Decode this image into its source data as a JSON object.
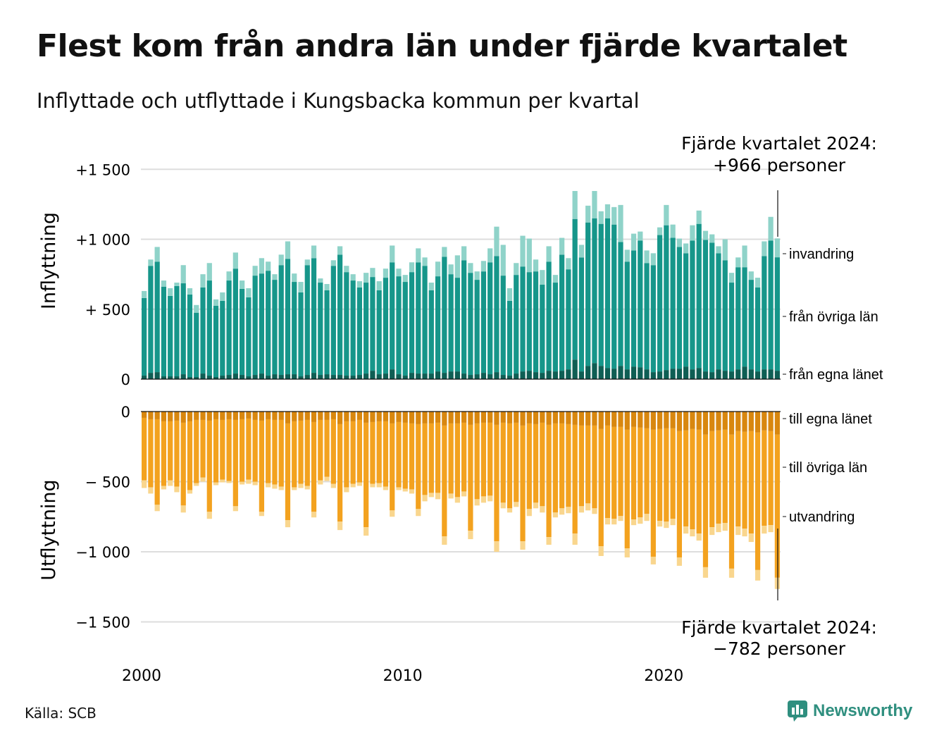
{
  "title": "Flest kom från andra län under fjärde kvartalet",
  "subtitle": "Inflyttade och utflyttade i Kungsbacka kommun per kvartal",
  "source": "Källa: SCB",
  "brand": "Newsworthy",
  "colors": {
    "in_egna": "#0e5e54",
    "in_ovriga": "#16968a",
    "in_invandring": "#8fd3c9",
    "out_egna": "#d8870f",
    "out_ovriga": "#f3a21f",
    "out_utvandring": "#f9d68e",
    "brand": "#2f8f7f"
  },
  "annotations": {
    "top_line1": "Fjärde kvartalet 2024:",
    "top_line2": "+966 personer",
    "bottom_line1": "Fjärde kvartalet 2024:",
    "bottom_line2": "−782 personer"
  },
  "chart_data": {
    "type": "bar",
    "stacked": true,
    "x_start_quarter": "2000 Q1",
    "x_ticks": [
      "2000",
      "2010",
      "2020"
    ],
    "panels": {
      "top": {
        "ylabel": "Inflyttning",
        "yticks": [
          "0",
          "+ 500",
          "+1 000",
          "+1 500"
        ],
        "ylim": [
          0,
          1500
        ],
        "series_labels": [
          "invandring",
          "från övriga län",
          "från egna länet"
        ]
      },
      "bottom": {
        "ylabel": "Utflyttning",
        "yticks": [
          "0",
          "− 500",
          "−1 000",
          "−1 500"
        ],
        "ylim": [
          -1500,
          0
        ],
        "series_labels": [
          "till egna länet",
          "till övriga län",
          "utvandring"
        ]
      }
    },
    "inflyttning_total": [
      630,
      855,
      945,
      705,
      650,
      690,
      815,
      650,
      530,
      750,
      830,
      570,
      620,
      770,
      905,
      705,
      650,
      810,
      865,
      840,
      750,
      890,
      985,
      755,
      695,
      855,
      955,
      720,
      680,
      850,
      950,
      810,
      750,
      700,
      760,
      795,
      700,
      790,
      955,
      790,
      745,
      835,
      935,
      870,
      690,
      840,
      945,
      820,
      885,
      950,
      830,
      770,
      845,
      935,
      1090,
      960,
      650,
      830,
      1025,
      1005,
      855,
      780,
      950,
      745,
      1010,
      865,
      1345,
      960,
      1240,
      1345,
      1200,
      1250,
      1230,
      1245,
      925,
      1040,
      1055,
      920,
      900,
      1085,
      1245,
      1105,
      1005,
      970,
      1100,
      1205,
      1060,
      1035,
      950,
      1000,
      760,
      870,
      955,
      770,
      725,
      985,
      1160,
      1006
    ],
    "inflyttning_egna": [
      25,
      45,
      50,
      20,
      20,
      20,
      35,
      15,
      15,
      40,
      25,
      15,
      25,
      30,
      40,
      30,
      20,
      30,
      40,
      25,
      35,
      30,
      35,
      35,
      20,
      30,
      45,
      30,
      35,
      30,
      30,
      25,
      25,
      30,
      40,
      60,
      35,
      40,
      70,
      35,
      25,
      45,
      40,
      40,
      40,
      55,
      45,
      55,
      55,
      40,
      30,
      35,
      45,
      35,
      50,
      30,
      25,
      40,
      55,
      60,
      50,
      45,
      60,
      55,
      60,
      70,
      140,
      55,
      95,
      115,
      95,
      80,
      75,
      95,
      70,
      90,
      85,
      70,
      50,
      55,
      65,
      75,
      75,
      90,
      70,
      80,
      55,
      50,
      70,
      60,
      55,
      70,
      90,
      70,
      55,
      70,
      70,
      60
    ],
    "inflyttning_invandring": [
      50,
      45,
      105,
      45,
      55,
      25,
      130,
      45,
      55,
      95,
      125,
      45,
      60,
      65,
      115,
      60,
      65,
      70,
      110,
      65,
      40,
      75,
      125,
      60,
      75,
      40,
      90,
      30,
      45,
      40,
      60,
      45,
      45,
      45,
      70,
      65,
      65,
      65,
      120,
      55,
      50,
      70,
      100,
      60,
      55,
      105,
      70,
      70,
      160,
      100,
      70,
      60,
      75,
      100,
      210,
      220,
      90,
      85,
      220,
      240,
      85,
      105,
      110,
      55,
      120,
      80,
      200,
      90,
      120,
      195,
      90,
      100,
      125,
      265,
      85,
      120,
      65,
      90,
      85,
      55,
      145,
      95,
      60,
      70,
      110,
      95,
      65,
      60,
      50,
      150,
      70,
      70,
      155,
      60,
      70,
      105,
      170,
      135
    ],
    "utflyttning_total": [
      545,
      585,
      710,
      555,
      530,
      575,
      720,
      585,
      530,
      500,
      765,
      525,
      505,
      510,
      710,
      520,
      515,
      525,
      745,
      540,
      550,
      560,
      825,
      560,
      545,
      555,
      755,
      520,
      495,
      545,
      845,
      575,
      540,
      530,
      885,
      540,
      540,
      560,
      750,
      560,
      570,
      585,
      745,
      640,
      610,
      625,
      950,
      620,
      650,
      605,
      910,
      670,
      650,
      640,
      1000,
      690,
      720,
      680,
      985,
      745,
      690,
      720,
      950,
      755,
      735,
      725,
      950,
      720,
      705,
      730,
      1030,
      805,
      805,
      780,
      1040,
      810,
      800,
      780,
      1090,
      820,
      830,
      810,
      1100,
      870,
      890,
      920,
      1185,
      880,
      860,
      850,
      1185,
      880,
      890,
      930,
      1205,
      870,
      860,
      1265
    ],
    "utflyttning_egna": [
      45,
      55,
      55,
      70,
      70,
      65,
      80,
      70,
      60,
      60,
      65,
      55,
      60,
      55,
      60,
      55,
      50,
      60,
      65,
      55,
      60,
      60,
      85,
      70,
      65,
      60,
      75,
      60,
      60,
      55,
      90,
      70,
      70,
      60,
      80,
      75,
      70,
      70,
      85,
      75,
      80,
      85,
      90,
      85,
      85,
      80,
      100,
      85,
      85,
      80,
      95,
      85,
      80,
      80,
      95,
      80,
      85,
      80,
      100,
      85,
      90,
      80,
      95,
      85,
      85,
      90,
      95,
      100,
      100,
      100,
      125,
      100,
      110,
      110,
      130,
      110,
      115,
      120,
      130,
      125,
      120,
      120,
      140,
      135,
      125,
      130,
      165,
      140,
      135,
      130,
      165,
      140,
      145,
      140,
      150,
      135,
      140,
      165
    ],
    "utflyttning_utvandring": [
      55,
      45,
      45,
      25,
      40,
      40,
      50,
      25,
      20,
      30,
      50,
      20,
      20,
      15,
      35,
      20,
      30,
      25,
      30,
      30,
      30,
      25,
      50,
      20,
      30,
      25,
      40,
      30,
      30,
      30,
      60,
      35,
      25,
      25,
      60,
      25,
      30,
      25,
      45,
      20,
      20,
      30,
      50,
      45,
      30,
      45,
      60,
      35,
      40,
      35,
      60,
      45,
      45,
      40,
      75,
      40,
      30,
      35,
      60,
      50,
      40,
      45,
      55,
      35,
      45,
      45,
      80,
      45,
      50,
      40,
      70,
      45,
      40,
      35,
      65,
      40,
      45,
      50,
      55,
      40,
      45,
      45,
      60,
      50,
      50,
      50,
      75,
      55,
      60,
      55,
      65,
      60,
      55,
      60,
      75,
      55,
      50,
      80
    ]
  }
}
